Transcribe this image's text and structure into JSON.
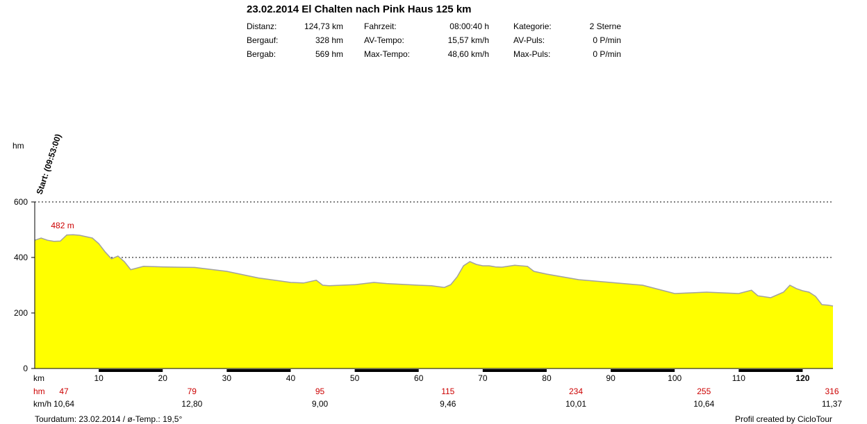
{
  "title": "23.02.2014 El Chalten nach Pink Haus 125 km",
  "stats": [
    {
      "label": "Distanz:",
      "value": "124,73 km"
    },
    {
      "label": "Bergauf:",
      "value": "328 hm"
    },
    {
      "label": "Bergab:",
      "value": "569 hm"
    },
    {
      "label": "Fahrzeit:",
      "value": "08:00:40 h"
    },
    {
      "label": "AV-Tempo:",
      "value": "15,57 km/h"
    },
    {
      "label": "Max-Tempo:",
      "value": "48,60 km/h"
    },
    {
      "label": "Kategorie:",
      "value": "2 Sterne"
    },
    {
      "label": "AV-Puls:",
      "value": "0 P/min"
    },
    {
      "label": "Max-Puls:",
      "value": "0 P/min"
    }
  ],
  "colors": {
    "fill": "#ffff00",
    "line": "#a0a0a0",
    "accent": "#cc0000",
    "grid": "#000000",
    "bar": "#000000"
  },
  "chart_data": {
    "type": "area",
    "title": "",
    "xlabel": "km",
    "ylabel": "hm",
    "xlim": [
      0,
      124.73
    ],
    "ylim": [
      0,
      600
    ],
    "y_ticks": [
      0,
      200,
      400,
      600
    ],
    "x_ticks": [
      10,
      20,
      30,
      40,
      50,
      60,
      70,
      80,
      90,
      100,
      110,
      120
    ],
    "grid": "horizontal dotted",
    "start_label": "Start: (09:53:00)",
    "max_annotation": {
      "x": 5,
      "y": 482,
      "label": "482 m"
    },
    "x": [
      0,
      1,
      2,
      3,
      4,
      5,
      6,
      7,
      8,
      9,
      10,
      11,
      12,
      13,
      14,
      15,
      17,
      20,
      25,
      30,
      35,
      40,
      42,
      44,
      45,
      46,
      50,
      53,
      55,
      60,
      62,
      64,
      65,
      66,
      67,
      68,
      69,
      70,
      71,
      72,
      73,
      75,
      77,
      78,
      80,
      85,
      90,
      95,
      100,
      105,
      110,
      112,
      113,
      115,
      117,
      118,
      119,
      120,
      121,
      122,
      123,
      124,
      124.73
    ],
    "y": [
      462,
      470,
      462,
      458,
      459,
      481,
      482,
      480,
      475,
      470,
      450,
      420,
      395,
      405,
      385,
      356,
      368,
      366,
      364,
      350,
      326,
      310,
      308,
      318,
      300,
      298,
      302,
      310,
      306,
      300,
      298,
      292,
      302,
      330,
      370,
      385,
      375,
      370,
      370,
      366,
      365,
      372,
      368,
      350,
      340,
      320,
      310,
      300,
      270,
      275,
      270,
      282,
      262,
      255,
      275,
      300,
      288,
      280,
      275,
      260,
      230,
      228,
      225
    ],
    "bottom_rows": [
      {
        "label": "km",
        "values": [
          "10",
          "20",
          "30",
          "40",
          "50",
          "60",
          "70",
          "80",
          "90",
          "100",
          "110",
          "120"
        ]
      },
      {
        "label": "hm",
        "values": [
          "47",
          "79",
          "95",
          "115",
          "234",
          "255",
          "316"
        ]
      },
      {
        "label": "km/h",
        "values": [
          "10,64",
          "12,80",
          "9,00",
          "9,46",
          "10,01",
          "10,64",
          "11,37"
        ]
      }
    ],
    "footer_left": "Tourdatum: 23.02.2014  /  ø-Temp.: 19,5°",
    "footer_right": "Profil created by CicloTour"
  }
}
